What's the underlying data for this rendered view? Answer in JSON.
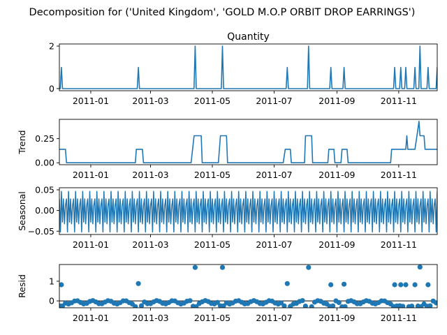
{
  "title": "Decomposition for ('United Kingdom', 'GOLD M.O.P ORBIT DROP EARRINGS')",
  "colors": {
    "series": "#1f77b4",
    "axis": "#000000",
    "background": "#ffffff"
  },
  "x_axis": {
    "type": "date",
    "range": [
      "2010-12-01",
      "2011-12-09"
    ],
    "ticks": [
      "2011-01",
      "2011-03",
      "2011-05",
      "2011-07",
      "2011-09",
      "2011-11"
    ]
  },
  "chart_data": [
    {
      "type": "line",
      "title": "Quantity",
      "ylabel": "",
      "ylim": [
        -0.1,
        2.1
      ],
      "yticks": [
        "0",
        "2"
      ],
      "y_tick_values": [
        0,
        2
      ],
      "grid": false,
      "baseline": 0,
      "spikes": [
        {
          "x": "2010-12-03",
          "y": 1
        },
        {
          "x": "2011-02-17",
          "y": 1
        },
        {
          "x": "2011-04-14",
          "y": 2
        },
        {
          "x": "2011-05-11",
          "y": 2
        },
        {
          "x": "2011-07-14",
          "y": 1
        },
        {
          "x": "2011-08-04",
          "y": 2
        },
        {
          "x": "2011-08-26",
          "y": 1
        },
        {
          "x": "2011-09-08",
          "y": 1
        },
        {
          "x": "2011-10-28",
          "y": 1
        },
        {
          "x": "2011-11-03",
          "y": 1
        },
        {
          "x": "2011-11-08",
          "y": 1
        },
        {
          "x": "2011-11-17",
          "y": 1
        },
        {
          "x": "2011-11-22",
          "y": 2
        },
        {
          "x": "2011-11-30",
          "y": 1
        },
        {
          "x": "2011-12-09",
          "y": 1
        }
      ]
    },
    {
      "type": "line",
      "title": "",
      "ylabel": "Trend",
      "ylim": [
        -0.02,
        0.45
      ],
      "yticks": [
        "0.00",
        "0.25"
      ],
      "y_tick_values": [
        0,
        0.25
      ],
      "grid": false,
      "points": [
        {
          "x": "2010-12-01",
          "y": 0.14
        },
        {
          "x": "2010-12-07",
          "y": 0.14
        },
        {
          "x": "2010-12-08",
          "y": 0
        },
        {
          "x": "2011-02-14",
          "y": 0
        },
        {
          "x": "2011-02-15",
          "y": 0.14
        },
        {
          "x": "2011-02-21",
          "y": 0.14
        },
        {
          "x": "2011-02-22",
          "y": 0
        },
        {
          "x": "2011-04-10",
          "y": 0
        },
        {
          "x": "2011-04-13",
          "y": 0.28
        },
        {
          "x": "2011-04-20",
          "y": 0.28
        },
        {
          "x": "2011-04-21",
          "y": 0
        },
        {
          "x": "2011-05-07",
          "y": 0
        },
        {
          "x": "2011-05-09",
          "y": 0.28
        },
        {
          "x": "2011-05-15",
          "y": 0.28
        },
        {
          "x": "2011-05-16",
          "y": 0
        },
        {
          "x": "2011-07-10",
          "y": 0
        },
        {
          "x": "2011-07-12",
          "y": 0.14
        },
        {
          "x": "2011-07-17",
          "y": 0.14
        },
        {
          "x": "2011-07-18",
          "y": 0
        },
        {
          "x": "2011-07-31",
          "y": 0
        },
        {
          "x": "2011-08-01",
          "y": 0.28
        },
        {
          "x": "2011-08-07",
          "y": 0.28
        },
        {
          "x": "2011-08-08",
          "y": 0
        },
        {
          "x": "2011-08-23",
          "y": 0
        },
        {
          "x": "2011-08-24",
          "y": 0.14
        },
        {
          "x": "2011-08-29",
          "y": 0.14
        },
        {
          "x": "2011-08-30",
          "y": 0
        },
        {
          "x": "2011-09-05",
          "y": 0
        },
        {
          "x": "2011-09-06",
          "y": 0.14
        },
        {
          "x": "2011-09-11",
          "y": 0.14
        },
        {
          "x": "2011-09-12",
          "y": 0
        },
        {
          "x": "2011-10-24",
          "y": 0
        },
        {
          "x": "2011-10-25",
          "y": 0.14
        },
        {
          "x": "2011-11-08",
          "y": 0.14
        },
        {
          "x": "2011-11-09",
          "y": 0.28
        },
        {
          "x": "2011-11-10",
          "y": 0.14
        },
        {
          "x": "2011-11-17",
          "y": 0.14
        },
        {
          "x": "2011-11-19",
          "y": 0.28
        },
        {
          "x": "2011-11-21",
          "y": 0.43
        },
        {
          "x": "2011-11-22",
          "y": 0.28
        },
        {
          "x": "2011-11-26",
          "y": 0.28
        },
        {
          "x": "2011-11-27",
          "y": 0.14
        },
        {
          "x": "2011-12-09",
          "y": 0.14
        }
      ]
    },
    {
      "type": "line",
      "title": "",
      "ylabel": "Seasonal",
      "ylim": [
        -0.058,
        0.055
      ],
      "yticks": [
        "−0.05",
        "0.00",
        "0.05"
      ],
      "y_tick_values": [
        -0.05,
        0,
        0.05
      ],
      "grid": false,
      "period_days": 7,
      "weekly_pattern": [
        0.028,
        -0.052,
        0.046,
        -0.028,
        0.028,
        -0.032,
        0.012
      ]
    },
    {
      "type": "scatter",
      "title": "",
      "ylabel": "Resid",
      "ylim": [
        -0.35,
        1.85
      ],
      "yticks": [
        "0",
        "1"
      ],
      "y_tick_values": [
        0,
        1
      ],
      "grid": false,
      "zero_line": true,
      "outliers": [
        {
          "x": "2010-12-03",
          "y": 0.82
        },
        {
          "x": "2011-02-17",
          "y": 0.88
        },
        {
          "x": "2011-04-14",
          "y": 1.7
        },
        {
          "x": "2011-05-11",
          "y": 1.7
        },
        {
          "x": "2011-07-14",
          "y": 0.88
        },
        {
          "x": "2011-08-04",
          "y": 1.7
        },
        {
          "x": "2011-08-26",
          "y": 0.82
        },
        {
          "x": "2011-09-08",
          "y": 0.85
        },
        {
          "x": "2011-10-28",
          "y": 0.82
        },
        {
          "x": "2011-11-03",
          "y": 0.82
        },
        {
          "x": "2011-11-08",
          "y": 0.82
        },
        {
          "x": "2011-11-17",
          "y": 0.82
        },
        {
          "x": "2011-11-22",
          "y": 1.72
        },
        {
          "x": "2011-11-30",
          "y": 0.82
        }
      ],
      "other_residual_range": [
        -0.3,
        0.05
      ]
    }
  ]
}
